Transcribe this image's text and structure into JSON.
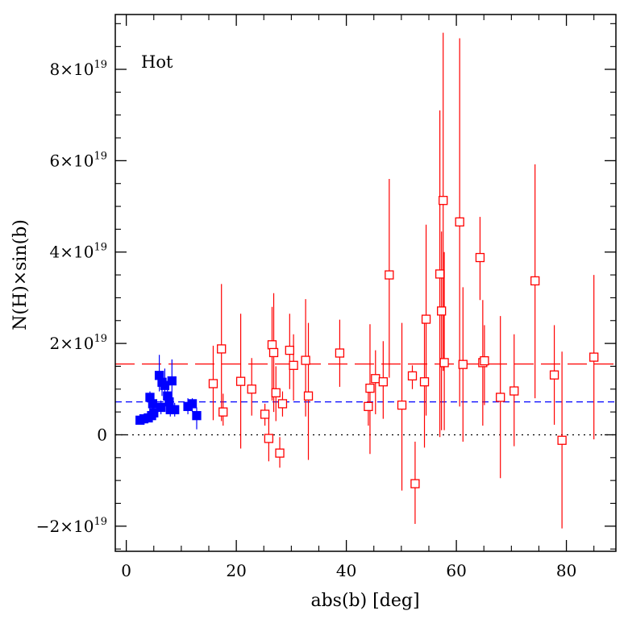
{
  "chart_data": {
    "type": "scatter",
    "title": "",
    "annotation": "Hot",
    "xlabel": "abs(b) [deg]",
    "ylabel": "N(H)×sin(b)",
    "xlim": [
      -2,
      89
    ],
    "ylim": [
      -2.55,
      9.2
    ],
    "y_unit_exponent": 19,
    "x_ticks": [
      0,
      20,
      40,
      60,
      80
    ],
    "x_tick_labels": [
      "0",
      "20",
      "40",
      "60",
      "80"
    ],
    "y_ticks": [
      -2,
      0,
      2,
      4,
      6,
      8
    ],
    "y_tick_labels": [
      {
        "mantissa": "−2×10",
        "exp": "19"
      },
      {
        "mantissa": "0",
        "exp": ""
      },
      {
        "mantissa": "2×10",
        "exp": "19"
      },
      {
        "mantissa": "4×10",
        "exp": "19"
      },
      {
        "mantissa": "6×10",
        "exp": "19"
      },
      {
        "mantissa": "8×10",
        "exp": "19"
      }
    ],
    "reference_lines": [
      {
        "name": "zero-line",
        "y": 0,
        "color": "#000000",
        "style": "dotted"
      },
      {
        "name": "blue-mean-line",
        "y": 0.72,
        "color": "#0000ff",
        "style": "dashed"
      },
      {
        "name": "red-mean-line",
        "y": 1.55,
        "color": "#ff0000",
        "style": "long-dashed"
      }
    ],
    "series": [
      {
        "name": "low-latitude (filled)",
        "color": "#0000ff",
        "marker": "filled-square",
        "points": [
          {
            "x": 2.5,
            "y": 0.32,
            "lo": 0.32,
            "hi": 0.32
          },
          {
            "x": 3.2,
            "y": 0.35,
            "lo": 0.35,
            "hi": 0.35
          },
          {
            "x": 4.0,
            "y": 0.37,
            "lo": 0.37,
            "hi": 0.37
          },
          {
            "x": 4.3,
            "y": 0.82,
            "lo": 0.62,
            "hi": 0.95
          },
          {
            "x": 4.6,
            "y": 0.42,
            "lo": 0.32,
            "hi": 0.52
          },
          {
            "x": 4.8,
            "y": 0.68,
            "lo": 0.55,
            "hi": 0.8
          },
          {
            "x": 5.0,
            "y": 0.48,
            "lo": 0.38,
            "hi": 0.58
          },
          {
            "x": 6.0,
            "y": 1.3,
            "lo": 0.95,
            "hi": 1.75
          },
          {
            "x": 6.3,
            "y": 0.6,
            "lo": 0.45,
            "hi": 0.75
          },
          {
            "x": 6.5,
            "y": 1.15,
            "lo": 0.85,
            "hi": 1.35
          },
          {
            "x": 7.0,
            "y": 1.08,
            "lo": 0.85,
            "hi": 1.45
          },
          {
            "x": 7.5,
            "y": 0.85,
            "lo": 0.6,
            "hi": 1.1
          },
          {
            "x": 7.8,
            "y": 0.72,
            "lo": 0.55,
            "hi": 0.9
          },
          {
            "x": 8.0,
            "y": 0.55,
            "lo": 0.4,
            "hi": 0.7
          },
          {
            "x": 8.3,
            "y": 1.18,
            "lo": 0.72,
            "hi": 1.65
          },
          {
            "x": 8.8,
            "y": 0.55,
            "lo": 0.4,
            "hi": 0.7
          },
          {
            "x": 11.2,
            "y": 0.62,
            "lo": 0.45,
            "hi": 0.8
          },
          {
            "x": 12.0,
            "y": 0.68,
            "lo": 0.5,
            "hi": 0.8
          },
          {
            "x": 12.8,
            "y": 0.42,
            "lo": 0.12,
            "hi": 0.6
          }
        ]
      },
      {
        "name": "high-latitude (open)",
        "color": "#ff0000",
        "marker": "open-square",
        "points": [
          {
            "x": 15.8,
            "y": 1.12,
            "lo": 0.32,
            "hi": 1.95
          },
          {
            "x": 17.3,
            "y": 1.88,
            "lo": 0.3,
            "hi": 3.3
          },
          {
            "x": 17.6,
            "y": 0.5,
            "lo": 0.2,
            "hi": 0.9
          },
          {
            "x": 20.8,
            "y": 1.17,
            "lo": -0.3,
            "hi": 2.65
          },
          {
            "x": 22.8,
            "y": 1.0,
            "lo": 0.42,
            "hi": 1.68
          },
          {
            "x": 25.2,
            "y": 0.45,
            "lo": 0.2,
            "hi": 0.68
          },
          {
            "x": 25.9,
            "y": -0.08,
            "lo": -0.58,
            "hi": 0.48
          },
          {
            "x": 26.5,
            "y": 1.97,
            "lo": 0.75,
            "hi": 2.8
          },
          {
            "x": 26.8,
            "y": 1.8,
            "lo": 0.5,
            "hi": 3.1
          },
          {
            "x": 27.2,
            "y": 0.92,
            "lo": 0.3,
            "hi": 1.5
          },
          {
            "x": 27.9,
            "y": -0.4,
            "lo": -0.72,
            "hi": -0.05
          },
          {
            "x": 28.4,
            "y": 0.68,
            "lo": 0.4,
            "hi": 0.95
          },
          {
            "x": 29.7,
            "y": 1.85,
            "lo": 1.0,
            "hi": 2.65
          },
          {
            "x": 30.4,
            "y": 1.52,
            "lo": 0.75,
            "hi": 2.2
          },
          {
            "x": 32.6,
            "y": 1.63,
            "lo": 0.4,
            "hi": 2.97
          },
          {
            "x": 33.1,
            "y": 0.85,
            "lo": -0.55,
            "hi": 2.45
          },
          {
            "x": 38.8,
            "y": 1.79,
            "lo": 1.05,
            "hi": 2.52
          },
          {
            "x": 44.0,
            "y": 0.62,
            "lo": 0.2,
            "hi": 1.0
          },
          {
            "x": 44.3,
            "y": 1.02,
            "lo": -0.42,
            "hi": 2.42
          },
          {
            "x": 45.3,
            "y": 1.23,
            "lo": 0.45,
            "hi": 1.85
          },
          {
            "x": 46.7,
            "y": 1.16,
            "lo": 0.35,
            "hi": 2.05
          },
          {
            "x": 47.8,
            "y": 3.5,
            "lo": 1.25,
            "hi": 5.6
          },
          {
            "x": 50.1,
            "y": 0.65,
            "lo": -1.22,
            "hi": 2.45
          },
          {
            "x": 52.0,
            "y": 1.29,
            "lo": 1.0,
            "hi": 1.52
          },
          {
            "x": 52.5,
            "y": -1.07,
            "lo": -1.95,
            "hi": -0.15
          },
          {
            "x": 54.2,
            "y": 1.16,
            "lo": -0.28,
            "hi": 2.6
          },
          {
            "x": 54.5,
            "y": 2.53,
            "lo": 0.42,
            "hi": 4.6
          },
          {
            "x": 57.0,
            "y": 3.52,
            "lo": -0.05,
            "hi": 7.1
          },
          {
            "x": 57.3,
            "y": 2.71,
            "lo": 0.1,
            "hi": 4.45
          },
          {
            "x": 57.6,
            "y": 5.13,
            "lo": 1.4,
            "hi": 8.8
          },
          {
            "x": 57.8,
            "y": 1.58,
            "lo": 0.1,
            "hi": 4.0
          },
          {
            "x": 60.6,
            "y": 4.66,
            "lo": 0.62,
            "hi": 8.68
          },
          {
            "x": 61.2,
            "y": 1.54,
            "lo": -0.15,
            "hi": 3.23
          },
          {
            "x": 64.3,
            "y": 3.88,
            "lo": 2.95,
            "hi": 4.77
          },
          {
            "x": 64.8,
            "y": 1.58,
            "lo": 0.2,
            "hi": 2.95
          },
          {
            "x": 65.1,
            "y": 1.62,
            "lo": 0.65,
            "hi": 2.4
          },
          {
            "x": 68.0,
            "y": 0.82,
            "lo": -0.95,
            "hi": 2.6
          },
          {
            "x": 70.5,
            "y": 0.96,
            "lo": -0.25,
            "hi": 2.2
          },
          {
            "x": 74.3,
            "y": 3.37,
            "lo": 0.8,
            "hi": 5.92
          },
          {
            "x": 77.8,
            "y": 1.31,
            "lo": 0.22,
            "hi": 2.4
          },
          {
            "x": 79.2,
            "y": -0.12,
            "lo": -2.05,
            "hi": 1.82
          },
          {
            "x": 85.0,
            "y": 1.7,
            "lo": -0.1,
            "hi": 3.5
          }
        ]
      }
    ]
  }
}
